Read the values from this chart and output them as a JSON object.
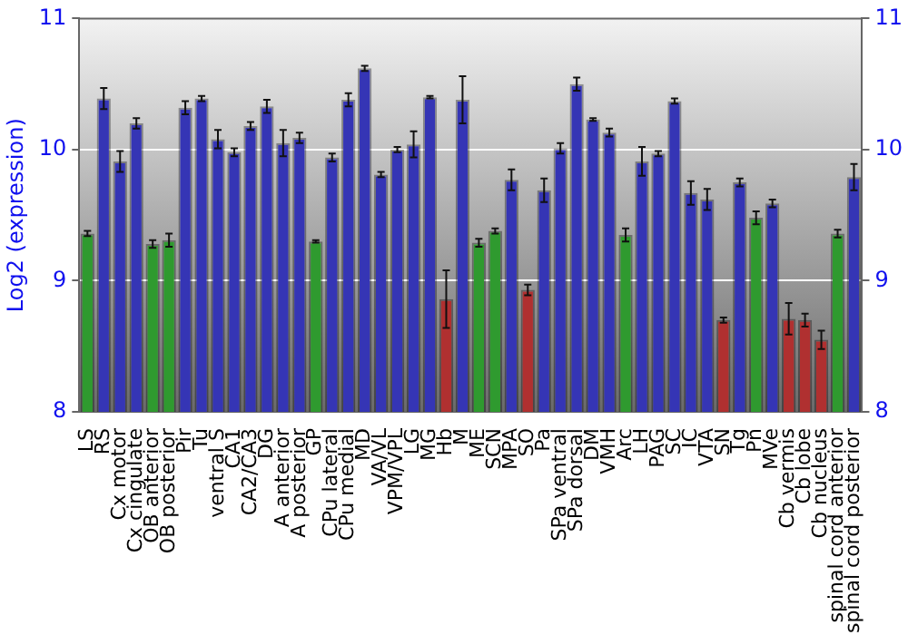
{
  "chart_data": {
    "type": "bar",
    "ylabel": "Log2 (expression)",
    "categories": [
      "LS",
      "RS",
      "Cx motor",
      "Cx cingulate",
      "OB anterior",
      "OB posterior",
      "Pir",
      "Tu",
      "ventral S",
      "CA1",
      "CA2/CA3",
      "DG",
      "A anterior",
      "A posterior",
      "GP",
      "CPu lateral",
      "CPu medial",
      "MD",
      "VA/VL",
      "VPM/VPL",
      "LG",
      "MG",
      "Hb",
      "M",
      "ME",
      "SCN",
      "MPA",
      "SO",
      "Pa",
      "SPa ventral",
      "SPa dorsal",
      "DM",
      "VMH",
      "Arc",
      "LH",
      "PAG",
      "SC",
      "IC",
      "VTA",
      "SN",
      "Tg",
      "Pn",
      "MVe",
      "Cb vermis",
      "Cb lobe",
      "Cb nucleus",
      "spinal cord anterior",
      "spinal cord posterior"
    ],
    "values": [
      9.36,
      10.39,
      9.91,
      10.2,
      9.28,
      9.31,
      10.32,
      10.39,
      10.08,
      9.98,
      10.18,
      10.33,
      10.05,
      10.09,
      9.3,
      9.94,
      10.38,
      10.62,
      9.81,
      10.0,
      10.04,
      10.4,
      8.86,
      10.38,
      9.29,
      9.38,
      9.77,
      8.93,
      9.69,
      10.01,
      10.5,
      10.23,
      10.13,
      9.35,
      9.91,
      9.97,
      10.37,
      9.67,
      9.62,
      8.7,
      9.75,
      9.48,
      9.59,
      8.71,
      8.7,
      8.55,
      9.36,
      9.79
    ],
    "errors": [
      0.02,
      0.08,
      0.08,
      0.04,
      0.03,
      0.05,
      0.05,
      0.02,
      0.07,
      0.03,
      0.03,
      0.05,
      0.1,
      0.04,
      0.01,
      0.03,
      0.05,
      0.02,
      0.02,
      0.02,
      0.1,
      0.01,
      0.22,
      0.18,
      0.03,
      0.02,
      0.08,
      0.04,
      0.09,
      0.04,
      0.05,
      0.01,
      0.03,
      0.05,
      0.11,
      0.02,
      0.02,
      0.09,
      0.08,
      0.02,
      0.03,
      0.05,
      0.03,
      0.12,
      0.05,
      0.07,
      0.03,
      0.1
    ],
    "colors": [
      "#2f9a2f",
      "#3535b5",
      "#3535b5",
      "#3535b5",
      "#2f9a2f",
      "#2f9a2f",
      "#3535b5",
      "#3535b5",
      "#3535b5",
      "#3535b5",
      "#3535b5",
      "#3535b5",
      "#3535b5",
      "#3535b5",
      "#2f9a2f",
      "#3535b5",
      "#3535b5",
      "#3535b5",
      "#3535b5",
      "#3535b5",
      "#3535b5",
      "#3535b5",
      "#b03030",
      "#3535b5",
      "#2f9a2f",
      "#2f9a2f",
      "#3535b5",
      "#b03030",
      "#3535b5",
      "#3535b5",
      "#3535b5",
      "#3535b5",
      "#3535b5",
      "#2f9a2f",
      "#3535b5",
      "#3535b5",
      "#3535b5",
      "#3535b5",
      "#3535b5",
      "#b03030",
      "#3535b5",
      "#2f9a2f",
      "#3535b5",
      "#b03030",
      "#b03030",
      "#b03030",
      "#2f9a2f",
      "#3535b5"
    ],
    "ylim": [
      8,
      11
    ],
    "yticks": [
      8,
      9,
      10,
      11
    ],
    "y2lim": [
      8,
      11
    ],
    "y2ticks": [
      8,
      9,
      10,
      11
    ],
    "grid": "y",
    "legend": false
  }
}
